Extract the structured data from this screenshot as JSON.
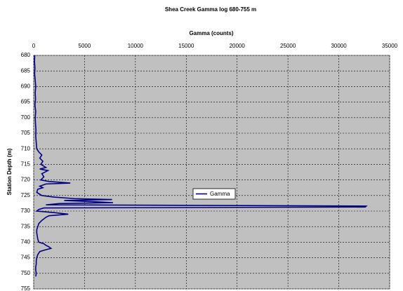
{
  "chart_data": {
    "type": "line",
    "title": "Shea Creek Gamma log 680-755 m",
    "xlabel": "Gamma (counts)",
    "ylabel": "Station Depth (m)",
    "xlim": [
      0,
      35000
    ],
    "xticks": [
      0,
      5000,
      10000,
      15000,
      20000,
      25000,
      30000,
      35000
    ],
    "ylim": [
      680,
      755
    ],
    "yticks": [
      680,
      685,
      690,
      695,
      700,
      705,
      710,
      715,
      720,
      725,
      730,
      735,
      740,
      745,
      750,
      755
    ],
    "y_inverted": true,
    "grid": true,
    "legend": "center",
    "y": [
      680,
      682,
      684,
      686,
      688,
      690,
      692,
      694,
      696,
      698,
      700,
      702,
      704,
      706,
      708,
      710,
      711,
      712,
      713,
      714,
      715,
      716,
      716.5,
      717,
      718,
      719,
      720,
      720.5,
      721,
      721.3,
      722,
      722.5,
      723,
      724,
      725,
      725.5,
      726,
      726.3,
      726.6,
      727,
      727.3,
      727.6,
      728,
      728.4,
      728.7,
      729,
      729.5,
      730,
      730.5,
      731,
      731.5,
      732,
      733,
      734,
      735,
      736,
      737,
      738,
      739,
      740,
      740.5,
      741,
      741.5,
      742,
      742.5,
      743,
      744,
      745,
      746,
      747,
      748,
      749,
      750,
      751
    ],
    "series": [
      {
        "name": "Gamma",
        "color": "#000080",
        "values": [
          100,
          80,
          120,
          90,
          150,
          200,
          150,
          180,
          120,
          200,
          150,
          180,
          220,
          200,
          250,
          300,
          500,
          800,
          600,
          900,
          700,
          1200,
          600,
          1400,
          800,
          1000,
          700,
          1500,
          3600,
          1200,
          600,
          900,
          400,
          300,
          800,
          2000,
          4000,
          7700,
          3000,
          6000,
          7800,
          2500,
          1200,
          32700,
          32600,
          1000,
          500,
          300,
          2000,
          3400,
          1500,
          1200,
          800,
          500,
          400,
          300,
          300,
          350,
          400,
          500,
          1000,
          1200,
          1500,
          1700,
          1100,
          600,
          400,
          300,
          250,
          250,
          200,
          200,
          250,
          200
        ]
      }
    ]
  }
}
